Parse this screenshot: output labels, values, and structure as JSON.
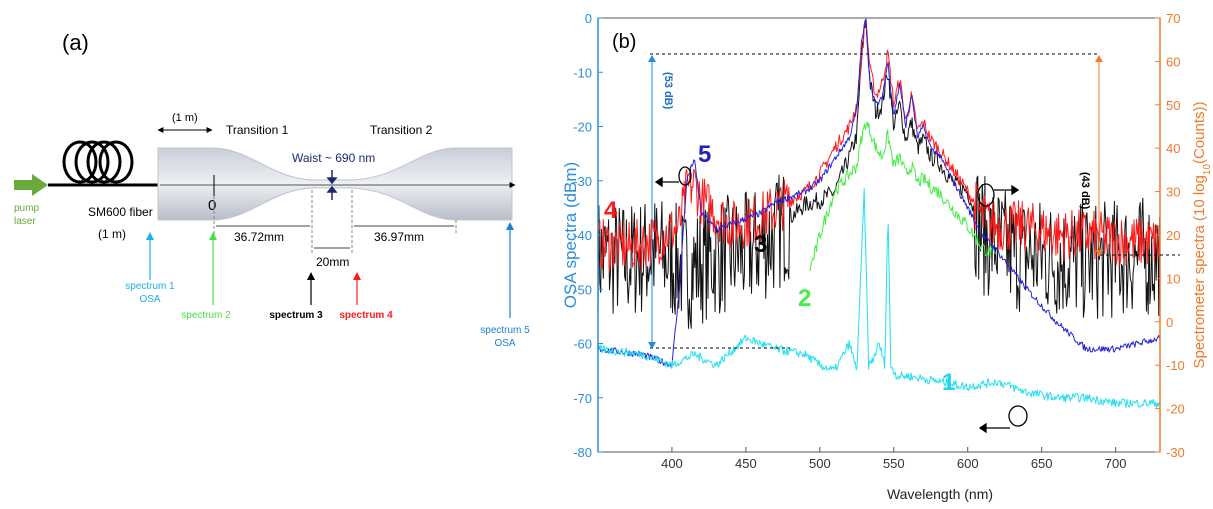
{
  "panel_a": {
    "label": "(a)",
    "pump_label": [
      "pump",
      "laser"
    ],
    "fiber_label": "SM600 fiber",
    "fiber_length": "(1 m)",
    "top_length": "(1 m)",
    "transition1": "Transition 1",
    "transition2": "Transition 2",
    "waist": "Waist ~ 690 nm",
    "origin": "0",
    "dim1": "36.72mm",
    "dim2": "20mm",
    "dim3": "36.97mm",
    "spectra": [
      {
        "label": "spectrum 1",
        "sub": "OSA",
        "color": "#1eaee8"
      },
      {
        "label": "spectrum 2",
        "sub": "",
        "color": "#4ae04a"
      },
      {
        "label": "spectrum 3",
        "sub": "",
        "color": "#000000"
      },
      {
        "label": "spectrum 4",
        "sub": "",
        "color": "#ff1a1a"
      },
      {
        "label": "spectrum 5",
        "sub": "OSA",
        "color": "#1e7fd8"
      }
    ],
    "colors": {
      "pump": "#6aaa3a",
      "label_blue": "#1eaee8"
    }
  },
  "panel_b": {
    "label": "(b)",
    "ann_53": "(53 dB)",
    "ann_43": "(43 dB)",
    "curve_labels": [
      {
        "text": "1",
        "color": "#22d3ee"
      },
      {
        "text": "2",
        "color": "#44ee44"
      },
      {
        "text": "3",
        "color": "#000000"
      },
      {
        "text": "4",
        "color": "#ff1a1a"
      },
      {
        "text": "5",
        "color": "#2222bb"
      }
    ]
  },
  "chart_data": {
    "type": "line",
    "xlabel": "Wavelength (nm)",
    "ylabel": "OSA spectra (dBm)",
    "y2label": "Spectrometer spectra (10 log",
    "y2label_sub": "10",
    "y2label_end": "(Counts))",
    "xlim": [
      350,
      730
    ],
    "ylim": [
      -80,
      0
    ],
    "y2lim": [
      -30,
      70
    ],
    "xticks": [
      400,
      450,
      500,
      550,
      600,
      650,
      700
    ],
    "yticks": [
      0,
      -10,
      -20,
      -30,
      -40,
      -50,
      -60,
      -70,
      -80
    ],
    "y2ticks": [
      70,
      60,
      50,
      40,
      30,
      20,
      10,
      0,
      -10,
      -20,
      -30
    ],
    "axis_colors": {
      "left": "#2b8fd6",
      "right": "#f07a2a"
    },
    "series": [
      {
        "name": "1",
        "axis": "left",
        "color": "#22e0f0",
        "x": [
          350,
          380,
          400,
          415,
          430,
          450,
          470,
          490,
          500,
          510,
          520,
          525,
          530,
          533,
          536,
          540,
          544,
          546,
          548,
          552,
          560,
          580,
          600,
          620,
          640,
          660,
          680,
          700,
          730
        ],
        "y": [
          -61,
          -62,
          -64,
          -62,
          -64,
          -59,
          -61,
          -62,
          -64,
          -65,
          -60,
          -65,
          -32,
          -64,
          -63,
          -60,
          -64,
          -35,
          -64,
          -66,
          -66,
          -67,
          -68,
          -67,
          -69,
          -70,
          -70,
          -71,
          -71
        ]
      },
      {
        "name": "2",
        "axis": "right",
        "color": "#44ee44",
        "x": [
          493,
          497,
          500,
          505,
          510,
          515,
          520,
          525,
          528,
          531,
          534,
          538,
          542,
          546,
          550,
          554,
          558,
          562,
          566,
          570,
          575,
          580,
          590,
          600,
          610,
          620
        ],
        "y": [
          12,
          16,
          20,
          25,
          30,
          32,
          34,
          36,
          42,
          46,
          44,
          40,
          38,
          43,
          36,
          38,
          34,
          36,
          32,
          33,
          31,
          30,
          26,
          22,
          17,
          15
        ]
      },
      {
        "name": "3",
        "axis": "right",
        "color": "#111111",
        "x": [
          350,
          370,
          390,
          410,
          430,
          450,
          470,
          480,
          490,
          500,
          510,
          515,
          520,
          525,
          528,
          531,
          534,
          538,
          542,
          546,
          550,
          554,
          558,
          562,
          566,
          570,
          575,
          580,
          590,
          600,
          610,
          630,
          650,
          670,
          690,
          710,
          730
        ],
        "y": [
          15,
          14,
          16,
          12,
          15,
          16,
          20,
          24,
          27,
          28,
          30,
          34,
          38,
          43,
          60,
          70,
          55,
          48,
          50,
          58,
          45,
          50,
          42,
          46,
          40,
          42,
          38,
          37,
          32,
          30,
          20,
          16,
          15,
          14,
          14,
          15,
          15
        ]
      },
      {
        "name": "4",
        "axis": "right",
        "color": "#ff1a1a",
        "x": [
          350,
          370,
          390,
          405,
          410,
          415,
          420,
          440,
          460,
          470,
          480,
          490,
          500,
          510,
          520,
          525,
          528,
          531,
          534,
          538,
          542,
          546,
          550,
          554,
          558,
          562,
          566,
          570,
          575,
          580,
          590,
          600,
          610,
          620,
          640,
          660,
          680,
          700,
          730
        ],
        "y": [
          18,
          17,
          19,
          22,
          30,
          32,
          28,
          22,
          24,
          26,
          28,
          30,
          34,
          40,
          45,
          50,
          60,
          70,
          58,
          52,
          55,
          62,
          50,
          56,
          46,
          52,
          44,
          46,
          42,
          40,
          35,
          30,
          24,
          22,
          22,
          20,
          20,
          19,
          18
        ]
      },
      {
        "name": "5",
        "axis": "left",
        "color": "#2222dd",
        "x": [
          350,
          380,
          400,
          405,
          410,
          415,
          420,
          430,
          440,
          450,
          460,
          470,
          480,
          490,
          500,
          510,
          520,
          525,
          528,
          531,
          534,
          538,
          542,
          546,
          550,
          554,
          558,
          562,
          566,
          570,
          575,
          580,
          590,
          600,
          610,
          620,
          640,
          660,
          680,
          700,
          730
        ],
        "y": [
          -61,
          -62,
          -64,
          -50,
          -30,
          -26,
          -36,
          -39,
          -38,
          -37,
          -36,
          -34,
          -33,
          -32,
          -30,
          -26,
          -22,
          -17,
          -5,
          0,
          -12,
          -16,
          -15,
          -8,
          -18,
          -12,
          -20,
          -14,
          -22,
          -20,
          -24,
          -25,
          -30,
          -35,
          -40,
          -43,
          -50,
          -56,
          -61,
          -61,
          -59
        ]
      }
    ]
  }
}
